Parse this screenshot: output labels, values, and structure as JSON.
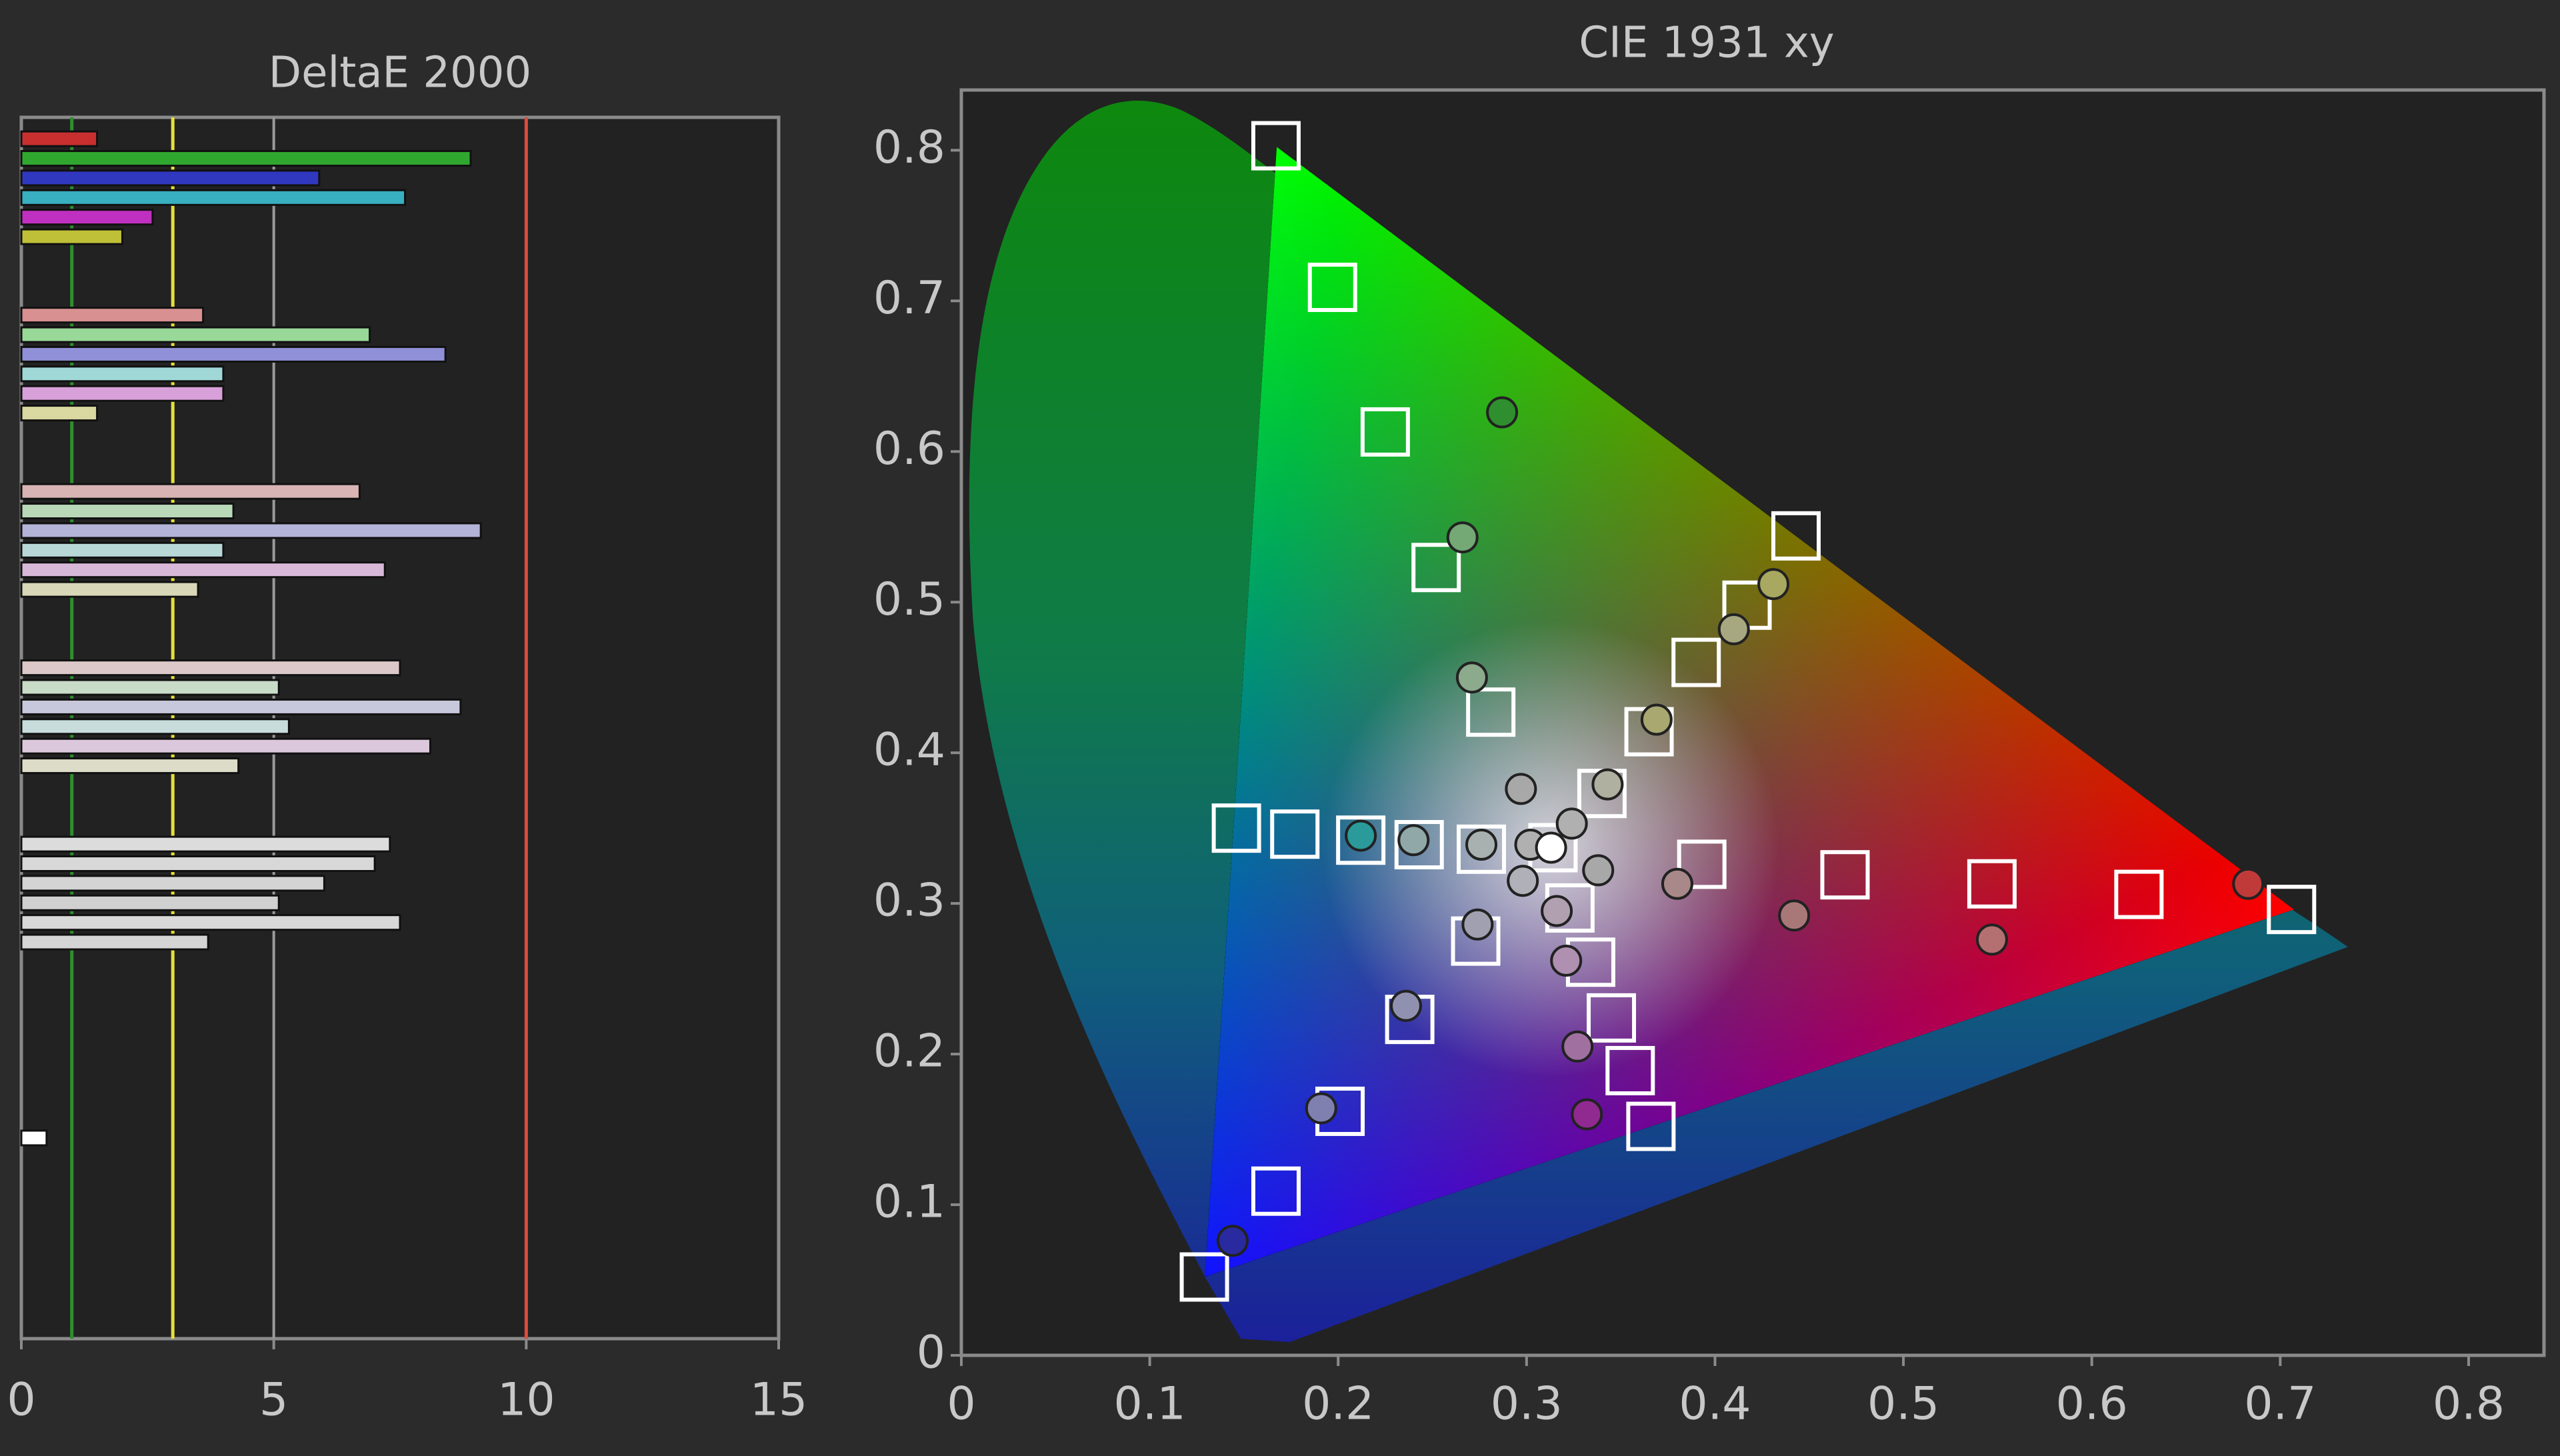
{
  "chart_data": [
    {
      "type": "bar",
      "orientation": "horizontal",
      "title": "DeltaE 2000",
      "categories": [
        null,
        null,
        null,
        null,
        null,
        null,
        null,
        null,
        null,
        null,
        null,
        null,
        null,
        null,
        null,
        null,
        null,
        null,
        null,
        null,
        null,
        null,
        null,
        null,
        null,
        null,
        null,
        null,
        null,
        null,
        null,
        null,
        null,
        null,
        null,
        null,
        null,
        null,
        null,
        null,
        null,
        null,
        null,
        null,
        null,
        null,
        null,
        null,
        null,
        null,
        null,
        null
      ],
      "values": [
        1.5,
        8.9,
        5.9,
        7.6,
        2.6,
        2.0,
        null,
        null,
        null,
        3.6,
        6.9,
        8.4,
        4.0,
        4.0,
        1.5,
        null,
        null,
        null,
        6.7,
        4.2,
        9.1,
        4.0,
        7.2,
        3.5,
        null,
        null,
        null,
        7.5,
        5.1,
        8.7,
        5.3,
        8.1,
        4.3,
        null,
        null,
        null,
        7.3,
        7.0,
        6.0,
        5.1,
        7.5,
        3.7,
        null,
        null,
        null,
        null,
        null,
        null,
        null,
        null,
        null,
        0.5
      ],
      "colors": [
        "#c83030",
        "#30a830",
        "#3038c0",
        "#38b0c0",
        "#c030c0",
        "#c0c038",
        null,
        null,
        null,
        "#d89090",
        "#98d898",
        "#9090d8",
        "#a0d8d8",
        "#d8a0d8",
        "#d8d8a0",
        null,
        null,
        null,
        "#d8b4b4",
        "#b8d8b8",
        "#b4b4d8",
        "#b8d8d8",
        "#d8b8d8",
        "#d8d8b8",
        null,
        null,
        null,
        "#dcc8c8",
        "#c8dcc8",
        "#c8c8dc",
        "#c8dcdc",
        "#dcc8dc",
        "#dcdcc8",
        null,
        null,
        null,
        "#dcdcdc",
        "#d8d8d8",
        "#d4d4d4",
        "#d0d0d0",
        "#d8d8d8",
        "#d4d4d4",
        null,
        null,
        null,
        null,
        null,
        null,
        null,
        null,
        null,
        "#ffffff"
      ],
      "xlim": [
        0,
        15
      ],
      "xticks": [
        0,
        5,
        10,
        15
      ],
      "grid": true,
      "reference_lines": [
        {
          "value": 1,
          "color": "#2f8f2f"
        },
        {
          "value": 3,
          "color": "#e6df3c"
        },
        {
          "value": 10,
          "color": "#e04a3c"
        }
      ]
    },
    {
      "type": "scatter",
      "title": "CIE 1931 xy",
      "xlim": [
        0,
        0.84
      ],
      "ylim": [
        0,
        0.84
      ],
      "xticks": [
        0,
        0.1,
        0.2,
        0.3,
        0.4,
        0.5,
        0.6,
        0.7,
        0.8
      ],
      "yticks": [
        0,
        0.1,
        0.2,
        0.3,
        0.4,
        0.5,
        0.6,
        0.7,
        0.8
      ],
      "series": [
        {
          "marker": "square",
          "color": "#ffffff",
          "x": [
            0.167,
            0.197,
            0.225,
            0.252,
            0.281,
            0.314,
            0.393,
            0.469,
            0.547,
            0.625,
            0.706,
            0.443,
            0.417,
            0.39,
            0.365,
            0.34,
            0.146,
            0.177,
            0.212,
            0.243,
            0.276,
            0.129,
            0.167,
            0.201,
            0.238,
            0.273,
            0.366,
            0.355,
            0.345,
            0.334,
            0.323
          ],
          "y": [
            0.803,
            0.709,
            0.613,
            0.523,
            0.427,
            0.337,
            0.326,
            0.319,
            0.313,
            0.306,
            0.296,
            0.544,
            0.498,
            0.46,
            0.414,
            0.373,
            0.35,
            0.346,
            0.342,
            0.339,
            0.336,
            0.052,
            0.109,
            0.162,
            0.223,
            0.275,
            0.152,
            0.189,
            0.224,
            0.261,
            0.297
          ]
        },
        {
          "marker": "circle",
          "x": [
            0.287,
            0.266,
            0.271,
            0.297,
            0.324,
            0.343,
            0.369,
            0.41,
            0.431,
            0.683,
            0.547,
            0.442,
            0.38,
            0.338,
            0.212,
            0.24,
            0.276,
            0.302,
            0.144,
            0.191,
            0.236,
            0.274,
            0.298,
            0.332,
            0.327,
            0.321,
            0.316,
            0.313
          ],
          "y": [
            0.626,
            0.543,
            0.45,
            0.376,
            0.353,
            0.379,
            0.422,
            0.482,
            0.512,
            0.313,
            0.276,
            0.292,
            0.313,
            0.322,
            0.345,
            0.342,
            0.339,
            0.339,
            0.076,
            0.164,
            0.232,
            0.286,
            0.315,
            0.16,
            0.205,
            0.262,
            0.295,
            0.337
          ],
          "colors": [
            "#2f8f2f",
            "#74a874",
            "#8caa8c",
            "#a8a8a8",
            "#b0b0b0",
            "#b0b0a0",
            "#a8a870",
            "#a8a880",
            "#a8a860",
            "#c03a3a",
            "#b47070",
            "#a87878",
            "#a88888",
            "#a8a8a8",
            "#2a9a9a",
            "#90a8a8",
            "#a8b0b0",
            "#b0b0b0",
            "#2a2aa0",
            "#8080b0",
            "#9090b0",
            "#a0a0b0",
            "#b0b0b8",
            "#902a90",
            "#a070a0",
            "#b090b0",
            "#b0a0b0",
            "#ffffff"
          ]
        }
      ]
    }
  ]
}
